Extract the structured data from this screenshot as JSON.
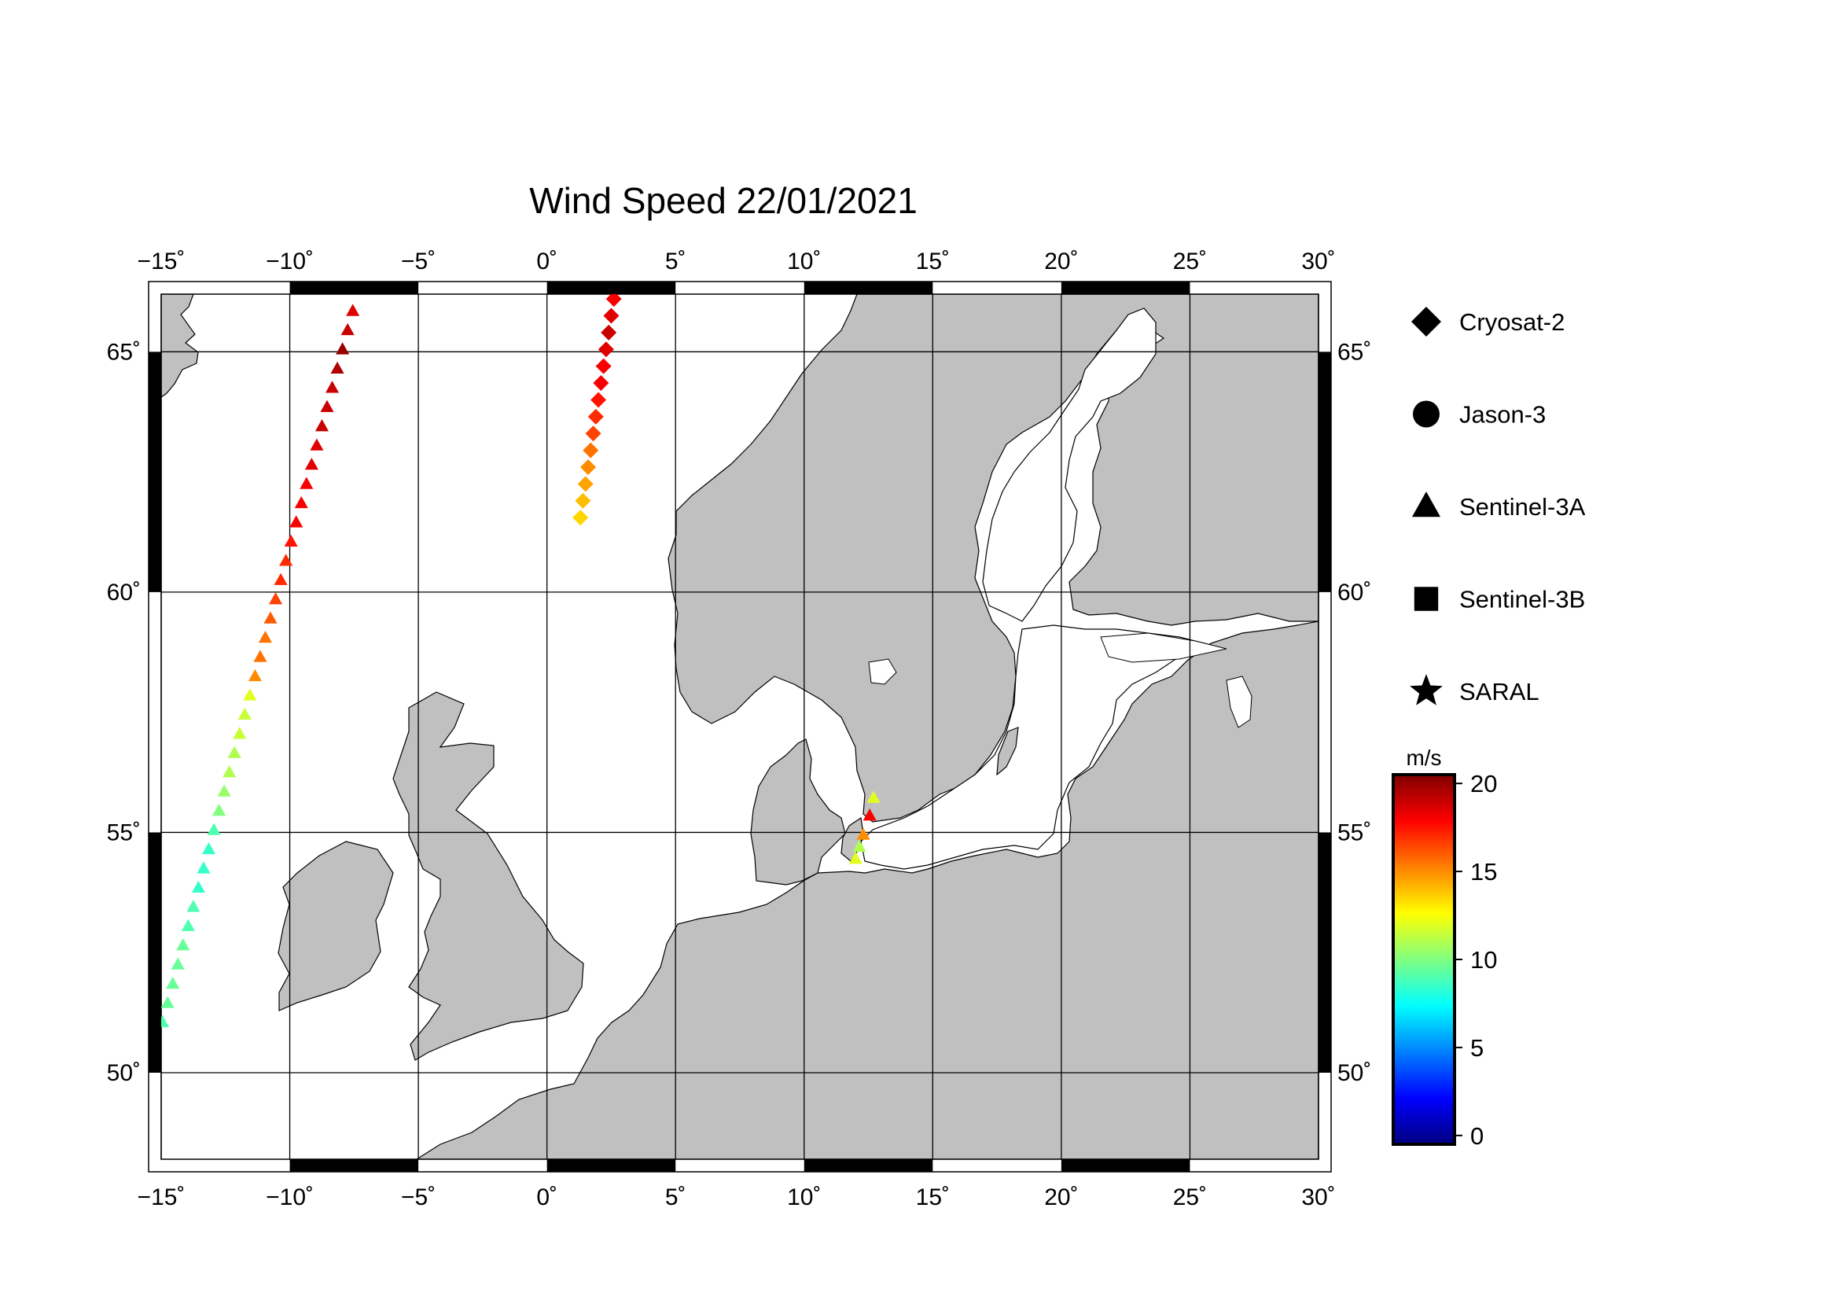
{
  "title": "Wind Speed 22/01/2021",
  "map": {
    "lon_range": [
      -15,
      30
    ],
    "lat_range": [
      48.2,
      66.2
    ],
    "lon_ticks": [
      {
        "value": -15,
        "label": "−15˚"
      },
      {
        "value": -10,
        "label": "−10˚"
      },
      {
        "value": -5,
        "label": "−5˚"
      },
      {
        "value": 0,
        "label": "0˚"
      },
      {
        "value": 5,
        "label": "5˚"
      },
      {
        "value": 10,
        "label": "10˚"
      },
      {
        "value": 15,
        "label": "15˚"
      },
      {
        "value": 20,
        "label": "20˚"
      },
      {
        "value": 25,
        "label": "25˚"
      },
      {
        "value": 30,
        "label": "30˚"
      }
    ],
    "lat_ticks": [
      {
        "value": 50,
        "label": "50˚"
      },
      {
        "value": 55,
        "label": "55˚"
      },
      {
        "value": 60,
        "label": "60˚"
      },
      {
        "value": 65,
        "label": "65˚"
      }
    ],
    "grid": true,
    "land_color": "#c0c0c0",
    "sea_color": "#ffffff"
  },
  "legend": {
    "items": [
      {
        "label": "Cryosat-2",
        "symbol": "diamond"
      },
      {
        "label": "Jason-3",
        "symbol": "circle"
      },
      {
        "label": "Sentinel-3A",
        "symbol": "triangle"
      },
      {
        "label": "Sentinel-3B",
        "symbol": "square"
      },
      {
        "label": "SARAL",
        "symbol": "star"
      }
    ]
  },
  "colorbar": {
    "unit": "m/s",
    "min": -0.5,
    "max": 20.5,
    "ticks": [
      {
        "value": 0,
        "label": "0"
      },
      {
        "value": 5,
        "label": "5"
      },
      {
        "value": 10,
        "label": "10"
      },
      {
        "value": 15,
        "label": "15"
      },
      {
        "value": 20,
        "label": "20"
      }
    ],
    "colormap": [
      "#000080",
      "#0000ff",
      "#0080ff",
      "#00ffff",
      "#80ff80",
      "#ffff00",
      "#ff8000",
      "#ff0000",
      "#800000"
    ]
  },
  "chart_data": {
    "type": "scatter",
    "title": "Wind Speed 22/01/2021",
    "xlabel": "",
    "ylabel": "",
    "xlim": [
      -15,
      30
    ],
    "ylim": [
      48.2,
      66.2
    ],
    "series": [
      {
        "name": "Sentinel-3A",
        "symbol": "triangle",
        "points": [
          {
            "lon": -14.95,
            "lat": 51.05,
            "speed": 9
          },
          {
            "lon": -14.75,
            "lat": 51.45,
            "speed": 9.5
          },
          {
            "lon": -14.55,
            "lat": 51.85,
            "speed": 9.5
          },
          {
            "lon": -14.35,
            "lat": 52.25,
            "speed": 9.5
          },
          {
            "lon": -14.15,
            "lat": 52.65,
            "speed": 9.5
          },
          {
            "lon": -13.95,
            "lat": 53.05,
            "speed": 9
          },
          {
            "lon": -13.75,
            "lat": 53.45,
            "speed": 9
          },
          {
            "lon": -13.55,
            "lat": 53.85,
            "speed": 8.5
          },
          {
            "lon": -13.35,
            "lat": 54.25,
            "speed": 8.5
          },
          {
            "lon": -13.15,
            "lat": 54.65,
            "speed": 8.5
          },
          {
            "lon": -12.95,
            "lat": 55.05,
            "speed": 9
          },
          {
            "lon": -12.75,
            "lat": 55.45,
            "speed": 10
          },
          {
            "lon": -12.55,
            "lat": 55.85,
            "speed": 10.5
          },
          {
            "lon": -12.35,
            "lat": 56.25,
            "speed": 11
          },
          {
            "lon": -12.15,
            "lat": 56.65,
            "speed": 11
          },
          {
            "lon": -11.95,
            "lat": 57.05,
            "speed": 11.5
          },
          {
            "lon": -11.75,
            "lat": 57.45,
            "speed": 11.5
          },
          {
            "lon": -11.55,
            "lat": 57.85,
            "speed": 12
          },
          {
            "lon": -11.35,
            "lat": 58.25,
            "speed": 15
          },
          {
            "lon": -11.15,
            "lat": 58.65,
            "speed": 15.5
          },
          {
            "lon": -10.95,
            "lat": 59.05,
            "speed": 15.5
          },
          {
            "lon": -10.75,
            "lat": 59.45,
            "speed": 16
          },
          {
            "lon": -10.55,
            "lat": 59.85,
            "speed": 16.5
          },
          {
            "lon": -10.35,
            "lat": 60.25,
            "speed": 17
          },
          {
            "lon": -10.15,
            "lat": 60.65,
            "speed": 17
          },
          {
            "lon": -9.95,
            "lat": 61.05,
            "speed": 17.5
          },
          {
            "lon": -9.75,
            "lat": 61.45,
            "speed": 18
          },
          {
            "lon": -9.55,
            "lat": 61.85,
            "speed": 18
          },
          {
            "lon": -9.35,
            "lat": 62.25,
            "speed": 18
          },
          {
            "lon": -9.15,
            "lat": 62.65,
            "speed": 18.5
          },
          {
            "lon": -8.95,
            "lat": 63.05,
            "speed": 18.5
          },
          {
            "lon": -8.75,
            "lat": 63.45,
            "speed": 19
          },
          {
            "lon": -8.55,
            "lat": 63.85,
            "speed": 19
          },
          {
            "lon": -8.35,
            "lat": 64.25,
            "speed": 19
          },
          {
            "lon": -8.15,
            "lat": 64.65,
            "speed": 19.5
          },
          {
            "lon": -7.95,
            "lat": 65.05,
            "speed": 20
          },
          {
            "lon": -7.75,
            "lat": 65.45,
            "speed": 19
          },
          {
            "lon": -7.55,
            "lat": 65.85,
            "speed": 18.5
          },
          {
            "lon": 12.7,
            "lat": 55.72,
            "speed": 12
          },
          {
            "lon": 12.55,
            "lat": 55.35,
            "speed": 18
          },
          {
            "lon": 12.3,
            "lat": 54.95,
            "speed": 15
          },
          {
            "lon": 12.15,
            "lat": 54.7,
            "speed": 11
          },
          {
            "lon": 12.0,
            "lat": 54.45,
            "speed": 12
          }
        ]
      },
      {
        "name": "Cryosat-2",
        "symbol": "diamond",
        "points": [
          {
            "lon": 1.3,
            "lat": 61.55,
            "speed": 13.5
          },
          {
            "lon": 1.4,
            "lat": 61.9,
            "speed": 14
          },
          {
            "lon": 1.5,
            "lat": 62.25,
            "speed": 14.5
          },
          {
            "lon": 1.6,
            "lat": 62.6,
            "speed": 15
          },
          {
            "lon": 1.7,
            "lat": 62.95,
            "speed": 15.5
          },
          {
            "lon": 1.8,
            "lat": 63.3,
            "speed": 16.5
          },
          {
            "lon": 1.9,
            "lat": 63.65,
            "speed": 17
          },
          {
            "lon": 2.0,
            "lat": 64.0,
            "speed": 17.5
          },
          {
            "lon": 2.1,
            "lat": 64.35,
            "speed": 18
          },
          {
            "lon": 2.2,
            "lat": 64.7,
            "speed": 18
          },
          {
            "lon": 2.3,
            "lat": 65.05,
            "speed": 18.5
          },
          {
            "lon": 2.4,
            "lat": 65.4,
            "speed": 19
          },
          {
            "lon": 2.5,
            "lat": 65.75,
            "speed": 18.5
          },
          {
            "lon": 2.6,
            "lat": 66.1,
            "speed": 18
          }
        ]
      }
    ]
  }
}
